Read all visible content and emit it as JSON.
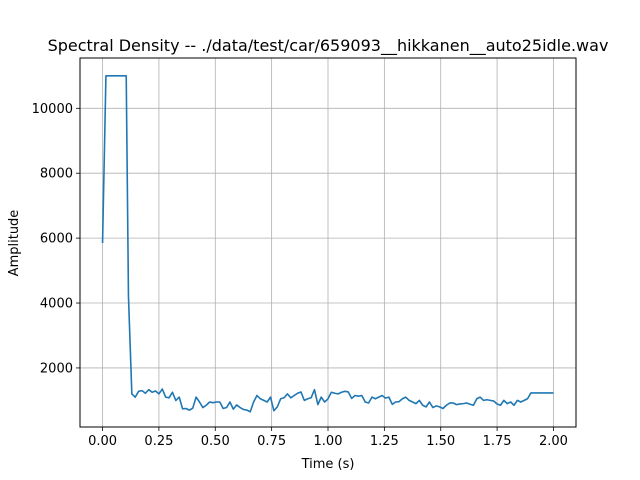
{
  "chart_data": {
    "type": "line",
    "title": "Spectral Density -- ./data/test/car/659093__hikkanen__auto25idle.wav",
    "xlabel": "Time (s)",
    "ylabel": "Amplitude",
    "xlim": [
      -0.1,
      2.1
    ],
    "ylim": [
      180,
      11550
    ],
    "grid": true,
    "line_color": "#1f77b4",
    "grid_color": "#b0b0b0",
    "xticks": [
      0.0,
      0.25,
      0.5,
      0.75,
      1.0,
      1.25,
      1.5,
      1.75,
      2.0
    ],
    "xtick_labels": [
      "0.00",
      "0.25",
      "0.50",
      "0.75",
      "1.00",
      "1.25",
      "1.50",
      "1.75",
      "2.00"
    ],
    "yticks": [
      2000,
      4000,
      6000,
      8000,
      10000
    ],
    "ytick_labels": [
      "2000",
      "4000",
      "6000",
      "8000",
      "10000"
    ],
    "series": [
      {
        "x": [
          0.0,
          0.015,
          0.03,
          0.045,
          0.06,
          0.075,
          0.09,
          0.105,
          0.115,
          0.13,
          0.145,
          0.16,
          0.175,
          0.19,
          0.205,
          0.22,
          0.235,
          0.25,
          0.265,
          0.28,
          0.295,
          0.31,
          0.325,
          0.34,
          0.355,
          0.37,
          0.385,
          0.4,
          0.415,
          0.43,
          0.445,
          0.46,
          0.475,
          0.49,
          0.505,
          0.52,
          0.535,
          0.55,
          0.565,
          0.58,
          0.595,
          0.61,
          0.625,
          0.64,
          0.655,
          0.67,
          0.685,
          0.7,
          0.715,
          0.73,
          0.745,
          0.76,
          0.775,
          0.79,
          0.805,
          0.82,
          0.835,
          0.85,
          0.865,
          0.88,
          0.895,
          0.91,
          0.925,
          0.94,
          0.955,
          0.97,
          0.985,
          1.0,
          1.015,
          1.03,
          1.045,
          1.06,
          1.075,
          1.09,
          1.105,
          1.12,
          1.135,
          1.15,
          1.165,
          1.18,
          1.195,
          1.21,
          1.225,
          1.24,
          1.255,
          1.27,
          1.285,
          1.3,
          1.315,
          1.33,
          1.345,
          1.36,
          1.375,
          1.39,
          1.405,
          1.42,
          1.435,
          1.45,
          1.465,
          1.48,
          1.495,
          1.51,
          1.525,
          1.54,
          1.555,
          1.57,
          1.585,
          1.6,
          1.615,
          1.63,
          1.645,
          1.66,
          1.675,
          1.69,
          1.705,
          1.72,
          1.735,
          1.75,
          1.765,
          1.78,
          1.795,
          1.81,
          1.825,
          1.84,
          1.855,
          1.87,
          1.885,
          1.9,
          1.915,
          1.93,
          1.945,
          1.96,
          1.975,
          1.99,
          2.0
        ],
        "values": [
          5850,
          11000,
          11000,
          11000,
          11000,
          11000,
          11000,
          11000,
          4200,
          1200,
          1100,
          1280,
          1300,
          1220,
          1330,
          1250,
          1290,
          1200,
          1350,
          1100,
          1080,
          1250,
          1000,
          1100,
          740,
          750,
          700,
          760,
          1100,
          950,
          780,
          850,
          950,
          930,
          950,
          950,
          750,
          780,
          950,
          730,
          860,
          780,
          720,
          700,
          650,
          950,
          1150,
          1050,
          1000,
          950,
          1100,
          680,
          800,
          1050,
          1080,
          1200,
          1080,
          1150,
          1220,
          1260,
          1000,
          1050,
          1080,
          1330,
          870,
          1100,
          950,
          1050,
          1250,
          1220,
          1200,
          1250,
          1280,
          1260,
          1060,
          1150,
          1130,
          1150,
          950,
          920,
          1100,
          1050,
          1100,
          1150,
          1070,
          1100,
          880,
          950,
          960,
          1050,
          1100,
          1000,
          950,
          900,
          1000,
          850,
          800,
          950,
          780,
          830,
          800,
          750,
          850,
          920,
          920,
          870,
          890,
          900,
          920,
          880,
          850,
          1050,
          1100,
          1000,
          1020,
          1000,
          980,
          890,
          850,
          1000,
          900,
          950,
          850,
          1000,
          950,
          1000,
          1050,
          1230,
          1230,
          1230,
          1230,
          1230,
          1230,
          1230,
          1230
        ]
      }
    ]
  }
}
